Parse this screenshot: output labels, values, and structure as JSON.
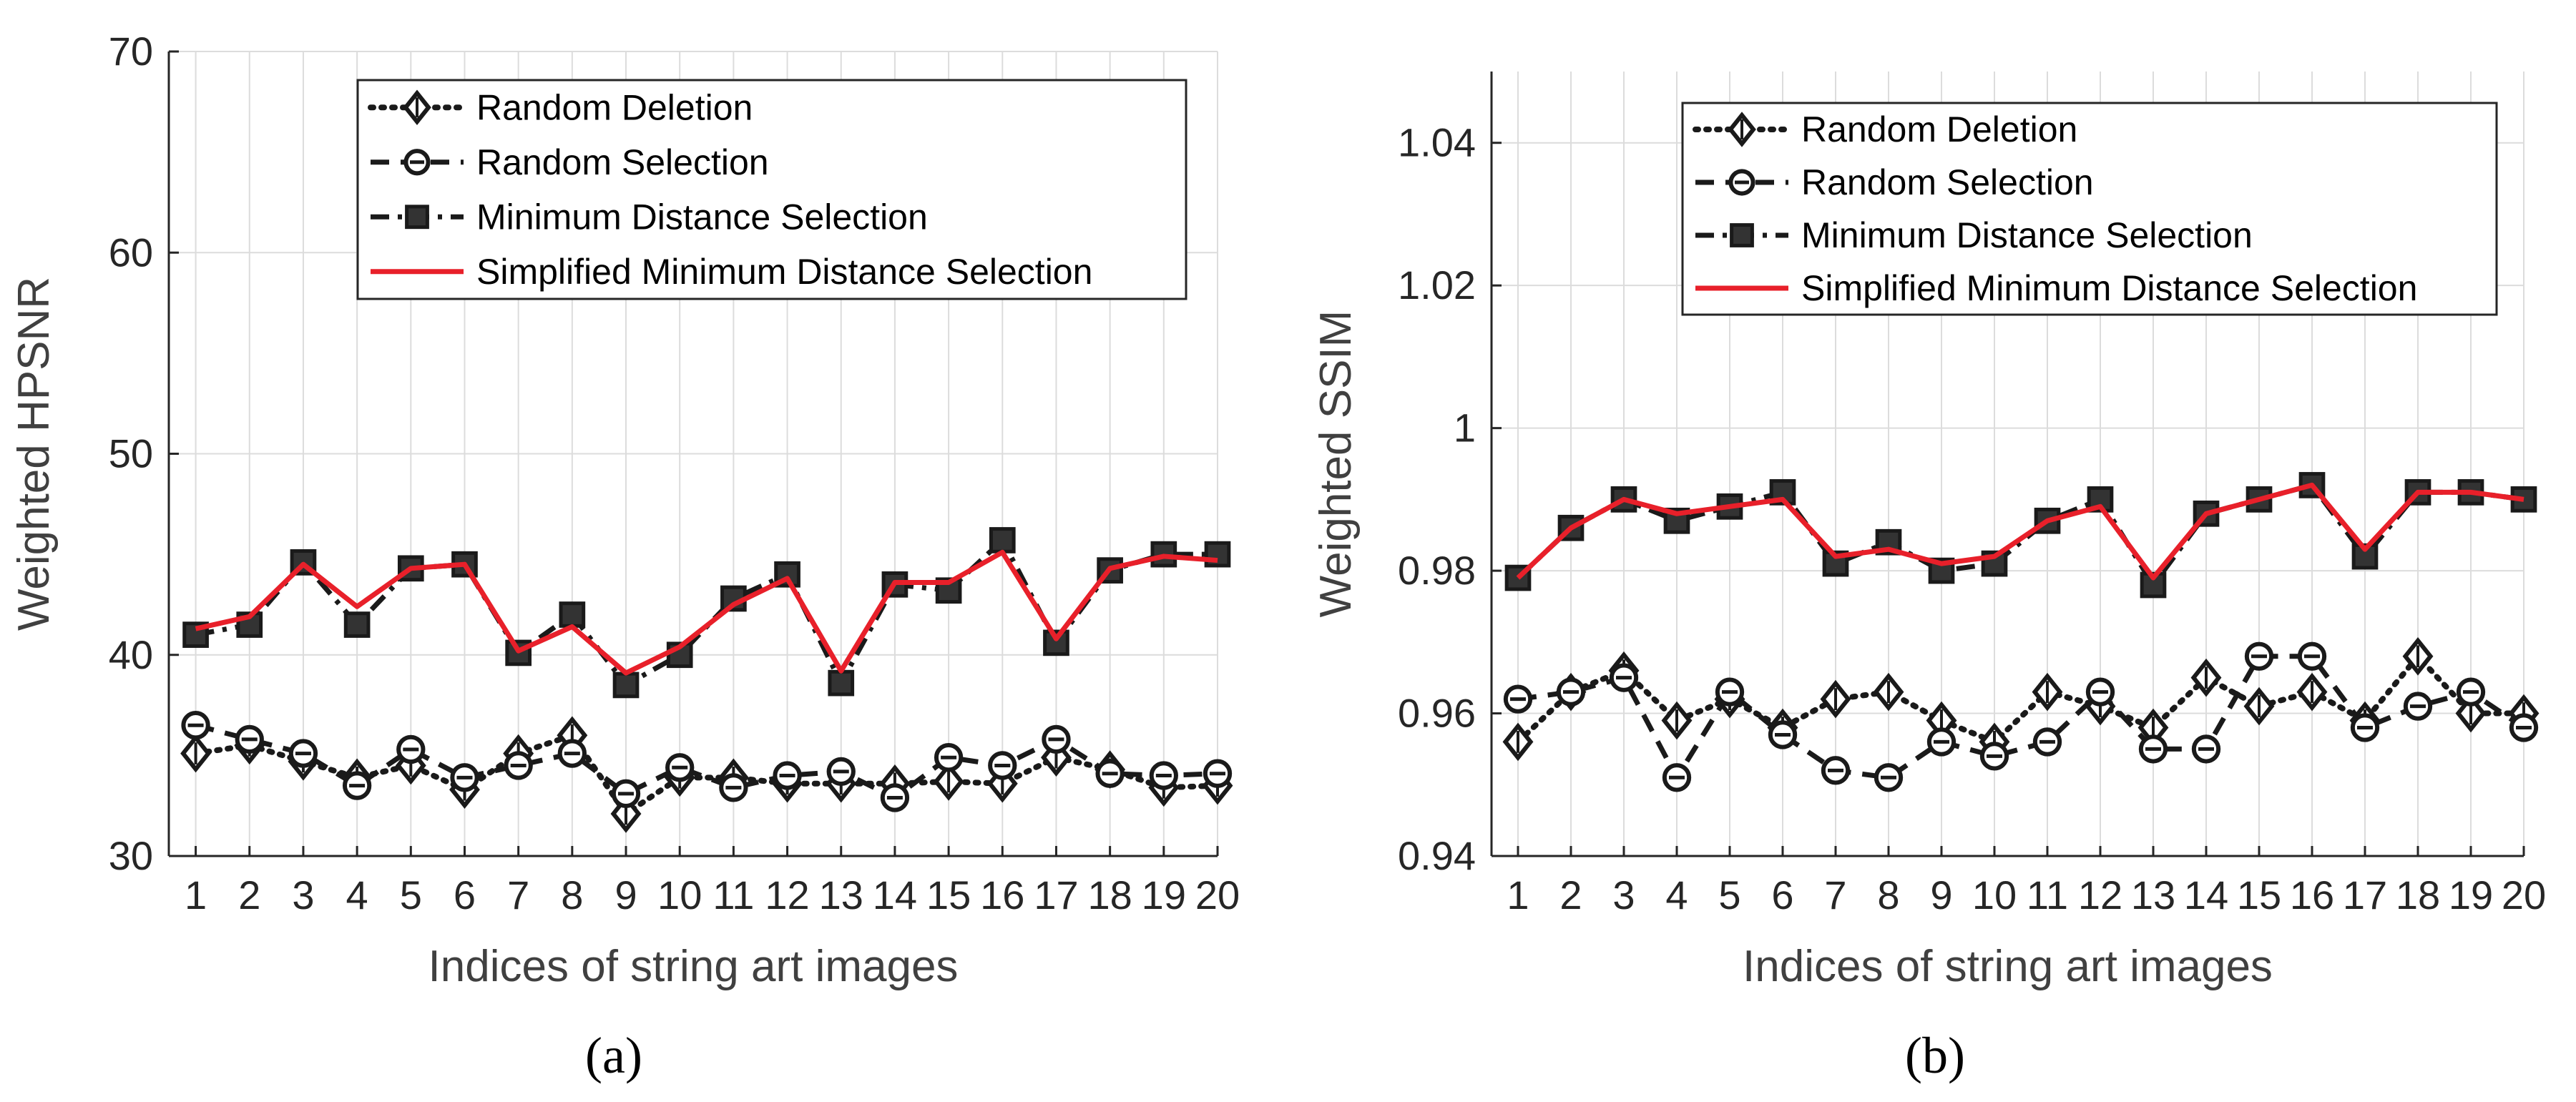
{
  "chart_data": [
    {
      "type": "line",
      "panel_label": "(a)",
      "xlabel": "Indices of string art images",
      "ylabel": "Weighted HPSNR",
      "xlim": [
        0.5,
        20
      ],
      "ylim": [
        30,
        70
      ],
      "x_ticks": [
        1,
        2,
        3,
        4,
        5,
        6,
        7,
        8,
        9,
        10,
        11,
        12,
        13,
        14,
        15,
        16,
        17,
        18,
        19,
        20
      ],
      "y_ticks": [
        30,
        40,
        50,
        60,
        70
      ],
      "y_tick_labels": [
        "30",
        "40",
        "50",
        "60",
        "70"
      ],
      "grid": true,
      "legend_position": "top-right",
      "x": [
        1,
        2,
        3,
        4,
        5,
        6,
        7,
        8,
        9,
        10,
        11,
        12,
        13,
        14,
        15,
        16,
        17,
        18,
        19,
        20
      ],
      "series": [
        {
          "name": "Random Deletion",
          "style": "dotted",
          "marker": "diamond",
          "color": "#1a1a1a",
          "values": [
            35.1,
            35.5,
            34.7,
            33.9,
            34.5,
            33.3,
            35.1,
            36.0,
            32.1,
            33.9,
            33.9,
            33.6,
            33.6,
            33.6,
            33.7,
            33.6,
            34.9,
            34.3,
            33.4,
            33.5
          ]
        },
        {
          "name": "Random Selection",
          "style": "dashed",
          "marker": "circle",
          "color": "#1a1a1a",
          "values": [
            36.5,
            35.8,
            35.1,
            33.5,
            35.3,
            33.9,
            34.5,
            35.1,
            33.1,
            34.4,
            33.4,
            34.0,
            34.2,
            32.9,
            34.9,
            34.5,
            35.8,
            34.1,
            34.0,
            34.1
          ]
        },
        {
          "name": "Minimum Distance Selection",
          "style": "dashdot",
          "marker": "square",
          "color": "#1a1a1a",
          "values": [
            41.0,
            41.5,
            44.6,
            41.5,
            44.3,
            44.5,
            40.1,
            42.0,
            38.5,
            40.0,
            42.8,
            44.0,
            38.6,
            43.5,
            43.2,
            45.7,
            40.6,
            44.2,
            45.0,
            45.0
          ]
        },
        {
          "name": "Simplified Minimum Distance Selection",
          "style": "solid",
          "marker": "none",
          "color": "#e8202a",
          "values": [
            41.3,
            41.9,
            44.5,
            42.4,
            44.3,
            44.5,
            40.2,
            41.4,
            39.1,
            40.4,
            42.5,
            43.8,
            39.2,
            43.6,
            43.6,
            45.1,
            40.8,
            44.3,
            44.9,
            44.7
          ]
        }
      ]
    },
    {
      "type": "line",
      "panel_label": "(b)",
      "xlabel": "Indices of string art images",
      "ylabel": "Weighted SSIM",
      "xlim": [
        0.5,
        20
      ],
      "ylim": [
        0.94,
        1.05
      ],
      "x_ticks": [
        1,
        2,
        3,
        4,
        5,
        6,
        7,
        8,
        9,
        10,
        11,
        12,
        13,
        14,
        15,
        16,
        17,
        18,
        19,
        20
      ],
      "y_ticks": [
        0.94,
        0.96,
        0.98,
        1.0,
        1.02,
        1.04
      ],
      "y_tick_labels": [
        "0.94",
        "0.96",
        "0.98",
        "1",
        "1.02",
        "1.04"
      ],
      "grid": true,
      "legend_position": "top-right",
      "x": [
        1,
        2,
        3,
        4,
        5,
        6,
        7,
        8,
        9,
        10,
        11,
        12,
        13,
        14,
        15,
        16,
        17,
        18,
        19,
        20
      ],
      "series": [
        {
          "name": "Random Deletion",
          "style": "dotted",
          "marker": "diamond",
          "color": "#1a1a1a",
          "values": [
            0.956,
            0.963,
            0.966,
            0.959,
            0.962,
            0.958,
            0.962,
            0.963,
            0.959,
            0.956,
            0.963,
            0.961,
            0.958,
            0.965,
            0.961,
            0.963,
            0.959,
            0.968,
            0.96,
            0.96
          ]
        },
        {
          "name": "Random Selection",
          "style": "dashed",
          "marker": "circle",
          "color": "#1a1a1a",
          "values": [
            0.962,
            0.963,
            0.965,
            0.951,
            0.963,
            0.957,
            0.952,
            0.951,
            0.956,
            0.954,
            0.956,
            0.963,
            0.955,
            0.955,
            0.968,
            0.968,
            0.958,
            0.961,
            0.963,
            0.958
          ]
        },
        {
          "name": "Minimum Distance Selection",
          "style": "dashdot",
          "marker": "square",
          "color": "#1a1a1a",
          "values": [
            0.979,
            0.986,
            0.99,
            0.987,
            0.989,
            0.991,
            0.981,
            0.984,
            0.98,
            0.981,
            0.987,
            0.99,
            0.978,
            0.988,
            0.99,
            0.992,
            0.982,
            0.991,
            0.991,
            0.99
          ]
        },
        {
          "name": "Simplified Minimum Distance Selection",
          "style": "solid",
          "marker": "none",
          "color": "#e8202a",
          "values": [
            0.979,
            0.986,
            0.99,
            0.988,
            0.989,
            0.99,
            0.982,
            0.983,
            0.981,
            0.982,
            0.987,
            0.989,
            0.979,
            0.988,
            0.99,
            0.992,
            0.983,
            0.991,
            0.991,
            0.99
          ]
        }
      ]
    }
  ]
}
